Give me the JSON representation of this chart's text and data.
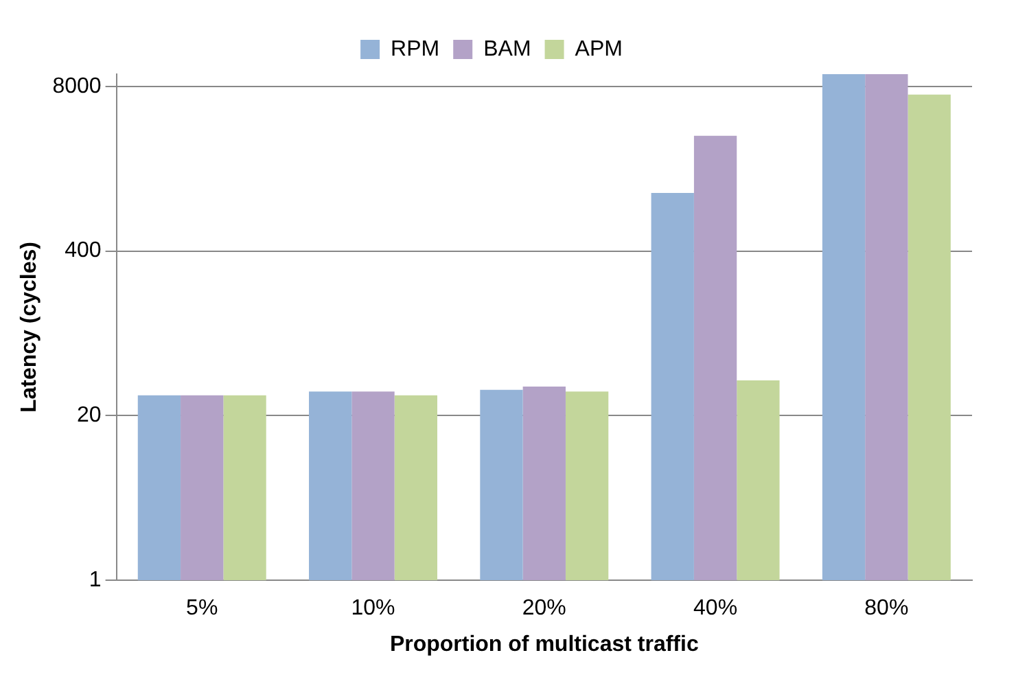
{
  "chart_data": {
    "type": "bar",
    "xlabel": "Proportion of multicast traffic",
    "ylabel": "Latency (cycles)",
    "categories": [
      "5%",
      "10%",
      "20%",
      "40%",
      "80%"
    ],
    "series": [
      {
        "name": "RPM",
        "color": "#95b3d7",
        "values": [
          29,
          31,
          32,
          1150,
          10000
        ]
      },
      {
        "name": "BAM",
        "color": "#b3a2c7",
        "values": [
          29,
          31,
          34,
          3260,
          10000
        ]
      },
      {
        "name": "APM",
        "color": "#c3d69b",
        "values": [
          29,
          29,
          31,
          38,
          6900
        ]
      }
    ],
    "log": true,
    "ylim": [
      1,
      10000
    ],
    "yticks": [
      1,
      20,
      400,
      8000
    ],
    "grid": "y",
    "legend": "top"
  }
}
